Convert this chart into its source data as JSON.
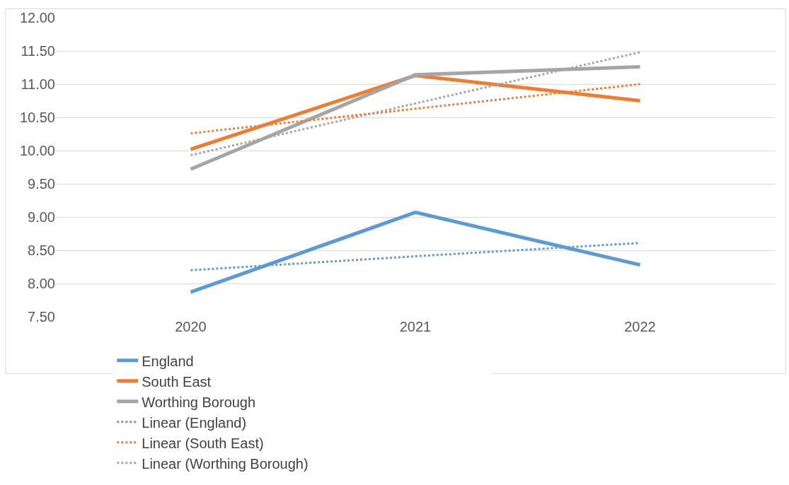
{
  "chart_data": {
    "type": "line",
    "categories": [
      "2020",
      "2021",
      "2022"
    ],
    "series": [
      {
        "name": "England",
        "color": "#5b9bd5",
        "values": [
          7.87,
          9.07,
          8.28
        ],
        "line_style": "solid"
      },
      {
        "name": "South East",
        "color": "#ed7d31",
        "values": [
          10.02,
          11.13,
          10.75
        ],
        "line_style": "solid"
      },
      {
        "name": "Worthing Borough",
        "color": "#a5a5a5",
        "values": [
          9.72,
          11.14,
          11.26
        ],
        "line_style": "solid"
      },
      {
        "name": "Linear (England)",
        "color": "#5b9bd5",
        "values": [
          8.2,
          8.41,
          8.61
        ],
        "line_style": "dotted"
      },
      {
        "name": "Linear (South East)",
        "color": "#ed7d31",
        "values": [
          10.26,
          10.63,
          11.0
        ],
        "line_style": "dotted"
      },
      {
        "name": "Linear (Worthing Borough)",
        "color": "#a5a5a5",
        "values": [
          9.93,
          10.71,
          11.48
        ],
        "line_style": "dotted"
      }
    ],
    "ylim": [
      7.5,
      12.0
    ],
    "yticks": [
      {
        "value": 7.5,
        "label": "7.50"
      },
      {
        "value": 8.0,
        "label": "8.00"
      },
      {
        "value": 8.5,
        "label": "8.50"
      },
      {
        "value": 9.0,
        "label": "9.00"
      },
      {
        "value": 9.5,
        "label": "9.50"
      },
      {
        "value": 10.0,
        "label": "10.00"
      },
      {
        "value": 10.5,
        "label": "10.50"
      },
      {
        "value": 11.0,
        "label": "11.00"
      },
      {
        "value": 11.5,
        "label": "11.50"
      },
      {
        "value": 12.0,
        "label": "12.00"
      }
    ],
    "grid": "y",
    "legend": "bottom",
    "marker": "none"
  }
}
